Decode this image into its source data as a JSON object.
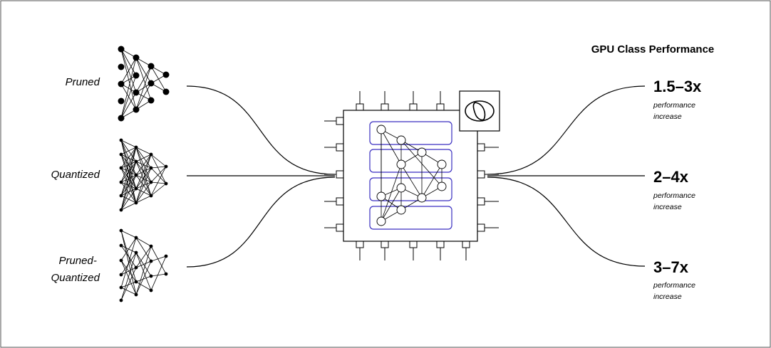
{
  "header": {
    "title": "GPU Class Performance"
  },
  "networks": [
    {
      "id": "pruned",
      "label_lines": [
        "Pruned"
      ]
    },
    {
      "id": "quantized",
      "label_lines": [
        "Quantized"
      ]
    },
    {
      "id": "pruned-quantized",
      "label_lines": [
        "Pruned-",
        "Quantized"
      ]
    }
  ],
  "results": [
    {
      "value": "1.5–3x",
      "caption_lines": [
        "performance",
        "increase"
      ]
    },
    {
      "value": "2–4x",
      "caption_lines": [
        "performance",
        "increase"
      ]
    },
    {
      "value": "3–7x",
      "caption_lines": [
        "performance",
        "increase"
      ]
    }
  ],
  "colors": {
    "stroke": "#000000",
    "chip_accent": "#3a2fc0",
    "frame": "#555555"
  },
  "icons": {
    "chip_badge": "logo-icon"
  }
}
